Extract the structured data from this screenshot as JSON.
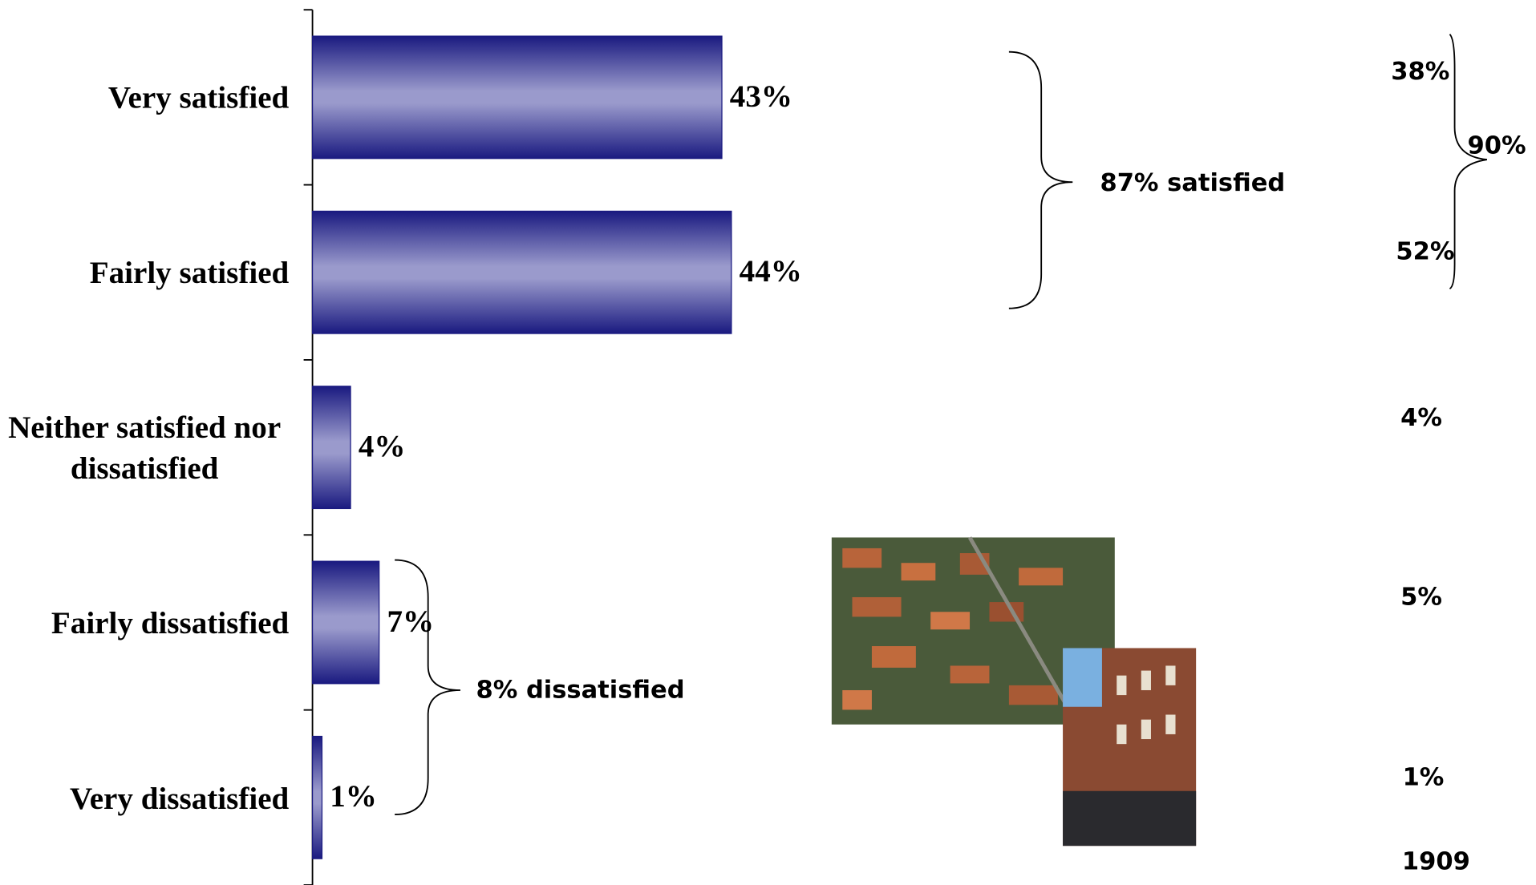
{
  "chart_data": {
    "type": "bar",
    "orientation": "horizontal",
    "categories": [
      "Very satisfied",
      "Fairly satisfied",
      "Neither satisfied nor dissatisfied",
      "Fairly dissatisfied",
      "Very dissatisfied"
    ],
    "values": [
      43,
      44,
      4,
      7,
      1
    ],
    "value_labels": [
      "43%",
      "44%",
      "4%",
      "7%",
      "1%"
    ],
    "color": "#1a1a80",
    "annotations": [
      "87% satisfied",
      "8% dissatisfied"
    ],
    "side_column": [
      "38%",
      "52%",
      "90%",
      "4%",
      "5%",
      "1%",
      "1909"
    ]
  }
}
